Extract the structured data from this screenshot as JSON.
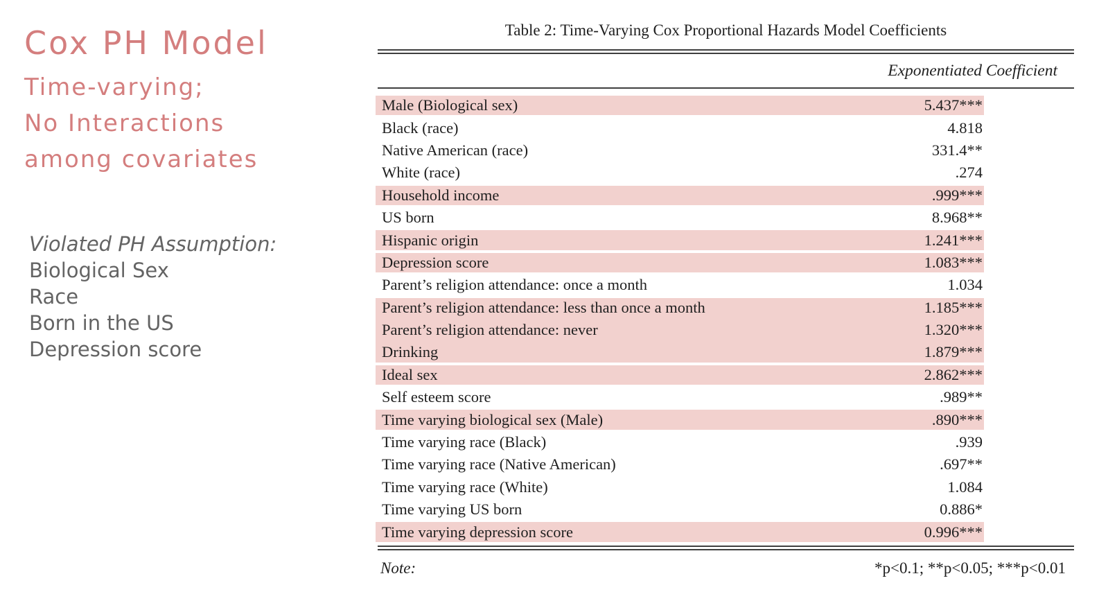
{
  "colors": {
    "accent": "#d47e7e",
    "gray_text": "#646464",
    "row_highlight": "#f2d1ce",
    "rule": "#3f3f3f"
  },
  "left_panel": {
    "title": "Cox PH Model",
    "subtitle_lines": [
      "Time-varying;",
      "No Interactions",
      "among covariates"
    ],
    "violated_heading": "Violated PH Assumption:",
    "violated_items": [
      "Biological Sex",
      "Race",
      "Born in the US",
      "Depression score"
    ]
  },
  "table": {
    "caption": "Table 2: Time-Varying Cox Proportional Hazards Model Coefficients",
    "column_header": "Exponentiated Coefficient",
    "rows": [
      {
        "label": "Male (Biological sex)",
        "value": "5.437***",
        "highlight": true,
        "group": 1
      },
      {
        "label": "Black (race)",
        "value": "4.818",
        "highlight": false
      },
      {
        "label": "Native American (race)",
        "value": "331.4**",
        "highlight": false
      },
      {
        "label": "White (race)",
        "value": ".274",
        "highlight": false
      },
      {
        "label": "Household income",
        "value": ".999***",
        "highlight": true,
        "group": 2
      },
      {
        "label": "US born",
        "value": "8.968**",
        "highlight": false
      },
      {
        "label": "Hispanic origin",
        "value": "1.241***",
        "highlight": true,
        "group": 3
      },
      {
        "label": "Depression score",
        "value": "1.083***",
        "highlight": true,
        "group": 4
      },
      {
        "label": "Parent’s religion attendance: once a month",
        "value": "1.034",
        "highlight": false
      },
      {
        "label": "Parent’s religion attendance: less than once a month",
        "value": "1.185***",
        "highlight": true,
        "group": 5
      },
      {
        "label": "Parent’s religion attendance: never",
        "value": "1.320***",
        "highlight": true,
        "group": 5
      },
      {
        "label": "Drinking",
        "value": "1.879***",
        "highlight": true,
        "group": 5
      },
      {
        "label": "Ideal sex",
        "value": "2.862***",
        "highlight": true,
        "group": 6
      },
      {
        "label": "Self esteem score",
        "value": ".989**",
        "highlight": false
      },
      {
        "label": "Time varying biological sex (Male)",
        "value": ".890***",
        "highlight": true,
        "group": 7
      },
      {
        "label": "Time varying race (Black)",
        "value": ".939",
        "highlight": false
      },
      {
        "label": "Time varying race (Native American)",
        "value": ".697**",
        "highlight": false
      },
      {
        "label": "Time varying race (White)",
        "value": "1.084",
        "highlight": false
      },
      {
        "label": "Time varying US born",
        "value": "0.886*",
        "highlight": false
      },
      {
        "label": "Time varying depression score",
        "value": "0.996***",
        "highlight": true,
        "group": 8
      }
    ],
    "note_label": "Note:",
    "note_text": "*p<0.1; **p<0.05; ***p<0.01"
  }
}
